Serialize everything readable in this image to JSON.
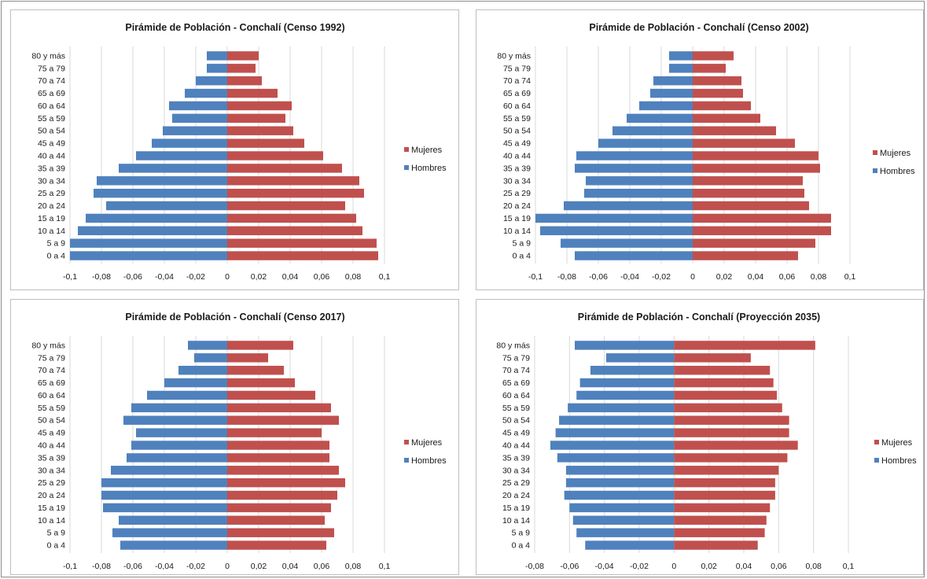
{
  "colors": {
    "mujeres": "#c0504d",
    "hombres": "#4f81bd"
  },
  "legend": [
    "Mujeres",
    "Hombres"
  ],
  "chart_data": [
    {
      "type": "bar",
      "orientation": "horizontal",
      "title": "Pirámide de Población - Conchalí (Censo 1992)",
      "categories": [
        "80 y más",
        "75 a 79",
        "70 a 74",
        "65 a 69",
        "60 a 64",
        "55 a 59",
        "50 a 54",
        "45 a 49",
        "40 a 44",
        "35 a 39",
        "30 a 34",
        "25 a 29",
        "20 a 24",
        "15 a 19",
        "10 a 14",
        "5 a 9",
        "0 a 4"
      ],
      "x_ticks": [
        "-0,1",
        "-0,08",
        "-0,06",
        "-0,04",
        "-0,02",
        "0",
        "0,02",
        "0,04",
        "0,06",
        "0,08",
        "0,1"
      ],
      "xlim": [
        -0.1,
        0.1
      ],
      "series": [
        {
          "name": "Mujeres",
          "values": [
            0.02,
            0.018,
            0.022,
            0.032,
            0.041,
            0.037,
            0.042,
            0.049,
            0.061,
            0.073,
            0.084,
            0.087,
            0.075,
            0.082,
            0.086,
            0.095,
            0.096
          ]
        },
        {
          "name": "Hombres",
          "values": [
            -0.013,
            -0.013,
            -0.02,
            -0.027,
            -0.037,
            -0.035,
            -0.041,
            -0.048,
            -0.058,
            -0.069,
            -0.083,
            -0.085,
            -0.077,
            -0.09,
            -0.095,
            -0.1,
            -0.1
          ]
        }
      ]
    },
    {
      "type": "bar",
      "orientation": "horizontal",
      "title": "Pirámide de Población - Conchalí (Censo 2002)",
      "categories": [
        "80 y más",
        "75 a 79",
        "70 a 74",
        "65 a 69",
        "60 a 64",
        "55 a 59",
        "50 a 54",
        "45 a 49",
        "40 a 44",
        "35 a 39",
        "30 a 34",
        "25 a 29",
        "20 a 24",
        "15 a 19",
        "10 a 14",
        "5 a 9",
        "0 a 4"
      ],
      "x_ticks": [
        "-0,1",
        "-0,08",
        "-0,06",
        "-0,04",
        "-0,02",
        "0",
        "0,02",
        "0,04",
        "0,06",
        "0,08",
        "0,1"
      ],
      "xlim": [
        -0.1,
        0.1
      ],
      "series": [
        {
          "name": "Mujeres",
          "values": [
            0.026,
            0.021,
            0.031,
            0.032,
            0.037,
            0.043,
            0.053,
            0.065,
            0.08,
            0.081,
            0.07,
            0.071,
            0.074,
            0.088,
            0.088,
            0.078,
            0.067
          ]
        },
        {
          "name": "Hombres",
          "values": [
            -0.015,
            -0.015,
            -0.025,
            -0.027,
            -0.034,
            -0.042,
            -0.051,
            -0.06,
            -0.074,
            -0.075,
            -0.068,
            -0.069,
            -0.082,
            -0.1,
            -0.097,
            -0.084,
            -0.075
          ]
        }
      ]
    },
    {
      "type": "bar",
      "orientation": "horizontal",
      "title": "Pirámide de Población - Conchalí (Censo 2017)",
      "categories": [
        "80 y más",
        "75 a 79",
        "70 a 74",
        "65 a 69",
        "60 a 64",
        "55 a 59",
        "50 a 54",
        "45 a 49",
        "40 a 44",
        "35 a 39",
        "30 a 34",
        "25 a 29",
        "20 a 24",
        "15 a 19",
        "10 a 14",
        "5 a 9",
        "0 a 4"
      ],
      "x_ticks": [
        "-0,1",
        "-0,08",
        "-0,06",
        "-0,04",
        "-0,02",
        "0",
        "0,02",
        "0,04",
        "0,06",
        "0,08",
        "0,1"
      ],
      "xlim": [
        -0.1,
        0.1
      ],
      "series": [
        {
          "name": "Mujeres",
          "values": [
            0.042,
            0.026,
            0.036,
            0.043,
            0.056,
            0.066,
            0.071,
            0.06,
            0.065,
            0.065,
            0.071,
            0.075,
            0.07,
            0.066,
            0.062,
            0.068,
            0.063
          ]
        },
        {
          "name": "Hombres",
          "values": [
            -0.025,
            -0.021,
            -0.031,
            -0.04,
            -0.051,
            -0.061,
            -0.066,
            -0.058,
            -0.061,
            -0.064,
            -0.074,
            -0.08,
            -0.08,
            -0.079,
            -0.069,
            -0.073,
            -0.068
          ]
        }
      ]
    },
    {
      "type": "bar",
      "orientation": "horizontal",
      "title": "Pirámide de Población - Conchalí (Proyección 2035)",
      "categories": [
        "80 y más",
        "75 a 79",
        "70 a 74",
        "65 a 69",
        "60 a 64",
        "55 a 59",
        "50 a 54",
        "45 a 49",
        "40 a 44",
        "35 a 39",
        "30 a 34",
        "25 a 29",
        "20 a 24",
        "15 a 19",
        "10 a 14",
        "5 a 9",
        "0 a 4"
      ],
      "x_ticks": [
        "-0,08",
        "-0,06",
        "-0,04",
        "-0,02",
        "0",
        "0,02",
        "0,04",
        "0,06",
        "0,08",
        "0,1"
      ],
      "xlim": [
        -0.08,
        0.1
      ],
      "series": [
        {
          "name": "Mujeres",
          "values": [
            0.081,
            0.044,
            0.055,
            0.057,
            0.059,
            0.062,
            0.066,
            0.066,
            0.071,
            0.065,
            0.06,
            0.058,
            0.058,
            0.055,
            0.053,
            0.052,
            0.048
          ]
        },
        {
          "name": "Hombres",
          "values": [
            -0.057,
            -0.039,
            -0.048,
            -0.054,
            -0.056,
            -0.061,
            -0.066,
            -0.068,
            -0.071,
            -0.067,
            -0.062,
            -0.062,
            -0.063,
            -0.06,
            -0.058,
            -0.056,
            -0.051
          ]
        }
      ]
    }
  ]
}
